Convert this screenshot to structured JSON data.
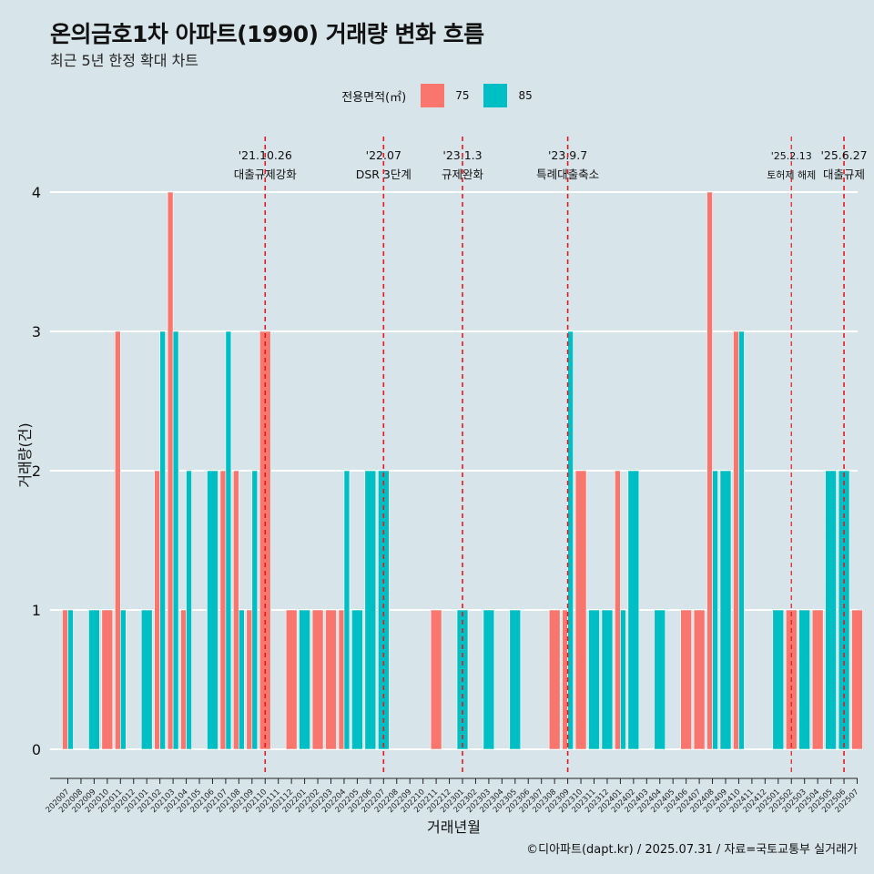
{
  "header": {
    "title": "온의금호1차 아파트(1990) 거래량 변화 흐름",
    "subtitle": "최근 5년 한정 확대 차트"
  },
  "legend": {
    "title": "전용면적(㎡)",
    "items": [
      {
        "label": "75",
        "color": "#F8766D"
      },
      {
        "label": "85",
        "color": "#00BFC4"
      }
    ]
  },
  "caption": "©디아파트(dapt.kr) / 2025.07.31 / 자료=국토교통부 실거래가",
  "chart_data": {
    "type": "bar",
    "xlabel": "거래년월",
    "ylabel": "거래량(건)",
    "ylim": [
      0,
      4
    ],
    "yticks": [
      0,
      1,
      2,
      3,
      4
    ],
    "grid": true,
    "legend_position": "top",
    "categories": [
      "202007",
      "202008",
      "202009",
      "202010",
      "202011",
      "202012",
      "202101",
      "202102",
      "202103",
      "202104",
      "202105",
      "202106",
      "202107",
      "202108",
      "202109",
      "202110",
      "202111",
      "202112",
      "202201",
      "202202",
      "202203",
      "202204",
      "202205",
      "202206",
      "202207",
      "202208",
      "202209",
      "202210",
      "202211",
      "202212",
      "202301",
      "202302",
      "202303",
      "202304",
      "202305",
      "202306",
      "202307",
      "202308",
      "202309",
      "202310",
      "202311",
      "202312",
      "202401",
      "202402",
      "202403",
      "202404",
      "202405",
      "202406",
      "202407",
      "202408",
      "202409",
      "202410",
      "202411",
      "202412",
      "202501",
      "202502",
      "202503",
      "202504",
      "202505",
      "202506",
      "202507"
    ],
    "series": [
      {
        "name": "75",
        "color": "#F8766D",
        "values": [
          1,
          0,
          0,
          1,
          3,
          0,
          0,
          2,
          4,
          1,
          0,
          0,
          2,
          2,
          1,
          3,
          0,
          1,
          0,
          1,
          1,
          1,
          0,
          0,
          0,
          0,
          0,
          0,
          1,
          0,
          0,
          0,
          0,
          0,
          0,
          0,
          0,
          1,
          1,
          2,
          0,
          0,
          2,
          0,
          0,
          0,
          0,
          1,
          1,
          4,
          0,
          3,
          0,
          0,
          0,
          1,
          0,
          1,
          0,
          0,
          1
        ]
      },
      {
        "name": "85",
        "color": "#00BFC4",
        "values": [
          1,
          0,
          1,
          0,
          1,
          0,
          1,
          3,
          3,
          2,
          0,
          2,
          3,
          1,
          2,
          0,
          0,
          0,
          1,
          0,
          0,
          2,
          1,
          2,
          2,
          0,
          0,
          0,
          0,
          0,
          1,
          0,
          1,
          0,
          1,
          0,
          0,
          0,
          3,
          0,
          1,
          1,
          1,
          2,
          0,
          1,
          0,
          0,
          0,
          2,
          2,
          3,
          0,
          0,
          1,
          0,
          1,
          0,
          2,
          2,
          0
        ]
      }
    ],
    "events": [
      {
        "date": "'21.10.26",
        "label": "대출규제강화",
        "category": "202110"
      },
      {
        "date": "'22.07",
        "label": "DSR 3단계",
        "category": "202207"
      },
      {
        "date": "'23.1.3",
        "label": "규제완화",
        "category": "202301"
      },
      {
        "date": "'23.9.7",
        "label": "특례대출축소",
        "category": "202309"
      },
      {
        "date": "'25.2.13",
        "label": "토허제 해제",
        "category": "202502"
      },
      {
        "date": "'25.6.27",
        "label": "대출규제",
        "category": "202506"
      }
    ]
  }
}
